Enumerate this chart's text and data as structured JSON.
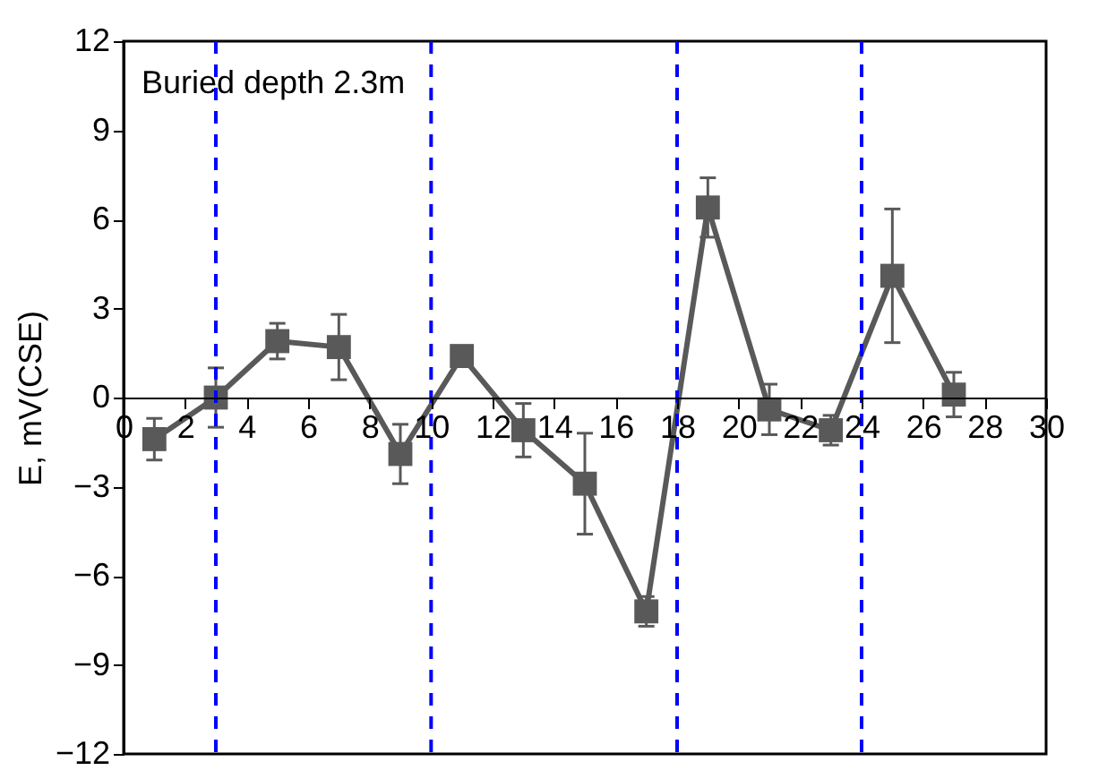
{
  "chart_data": {
    "type": "line",
    "ylabel": "E, mV(CSE)",
    "annotations": [
      "Buried depth 2.3m"
    ],
    "x": [
      1,
      3,
      5,
      7,
      9,
      11,
      13,
      15,
      17,
      19,
      21,
      23,
      25,
      27
    ],
    "series": [
      {
        "color": "#595959",
        "values": [
          -1.4,
          0,
          1.9,
          1.7,
          -1.9,
          1.4,
          -1.1,
          -2.9,
          -7.2,
          6.4,
          -0.4,
          -1.1,
          4.1,
          0.1
        ],
        "errors": [
          0.7,
          1.0,
          0.6,
          1.1,
          1.0,
          0.15,
          0.9,
          1.7,
          0.5,
          1.0,
          0.85,
          0.5,
          2.25,
          0.75
        ]
      }
    ],
    "xlim": [
      0,
      30
    ],
    "xticks": [
      0,
      2,
      4,
      6,
      8,
      10,
      12,
      14,
      16,
      18,
      20,
      22,
      24,
      26,
      28,
      30
    ],
    "ylim": [
      -12,
      12
    ],
    "yticks": [
      -12,
      -9,
      -6,
      -3,
      0,
      3,
      6,
      9,
      12
    ],
    "ref_lines": [
      {
        "axis": "x",
        "value": 3,
        "color": "#0000ff",
        "line_style": "dashed"
      },
      {
        "axis": "x",
        "value": 10,
        "color": "#0000ff",
        "line_style": "dashed"
      },
      {
        "axis": "x",
        "value": 18,
        "color": "#0000ff",
        "line_style": "dashed"
      },
      {
        "axis": "x",
        "value": 24,
        "color": "#0000ff",
        "line_style": "dashed"
      }
    ],
    "marker": "square",
    "line_style": "solid",
    "grid": false
  }
}
